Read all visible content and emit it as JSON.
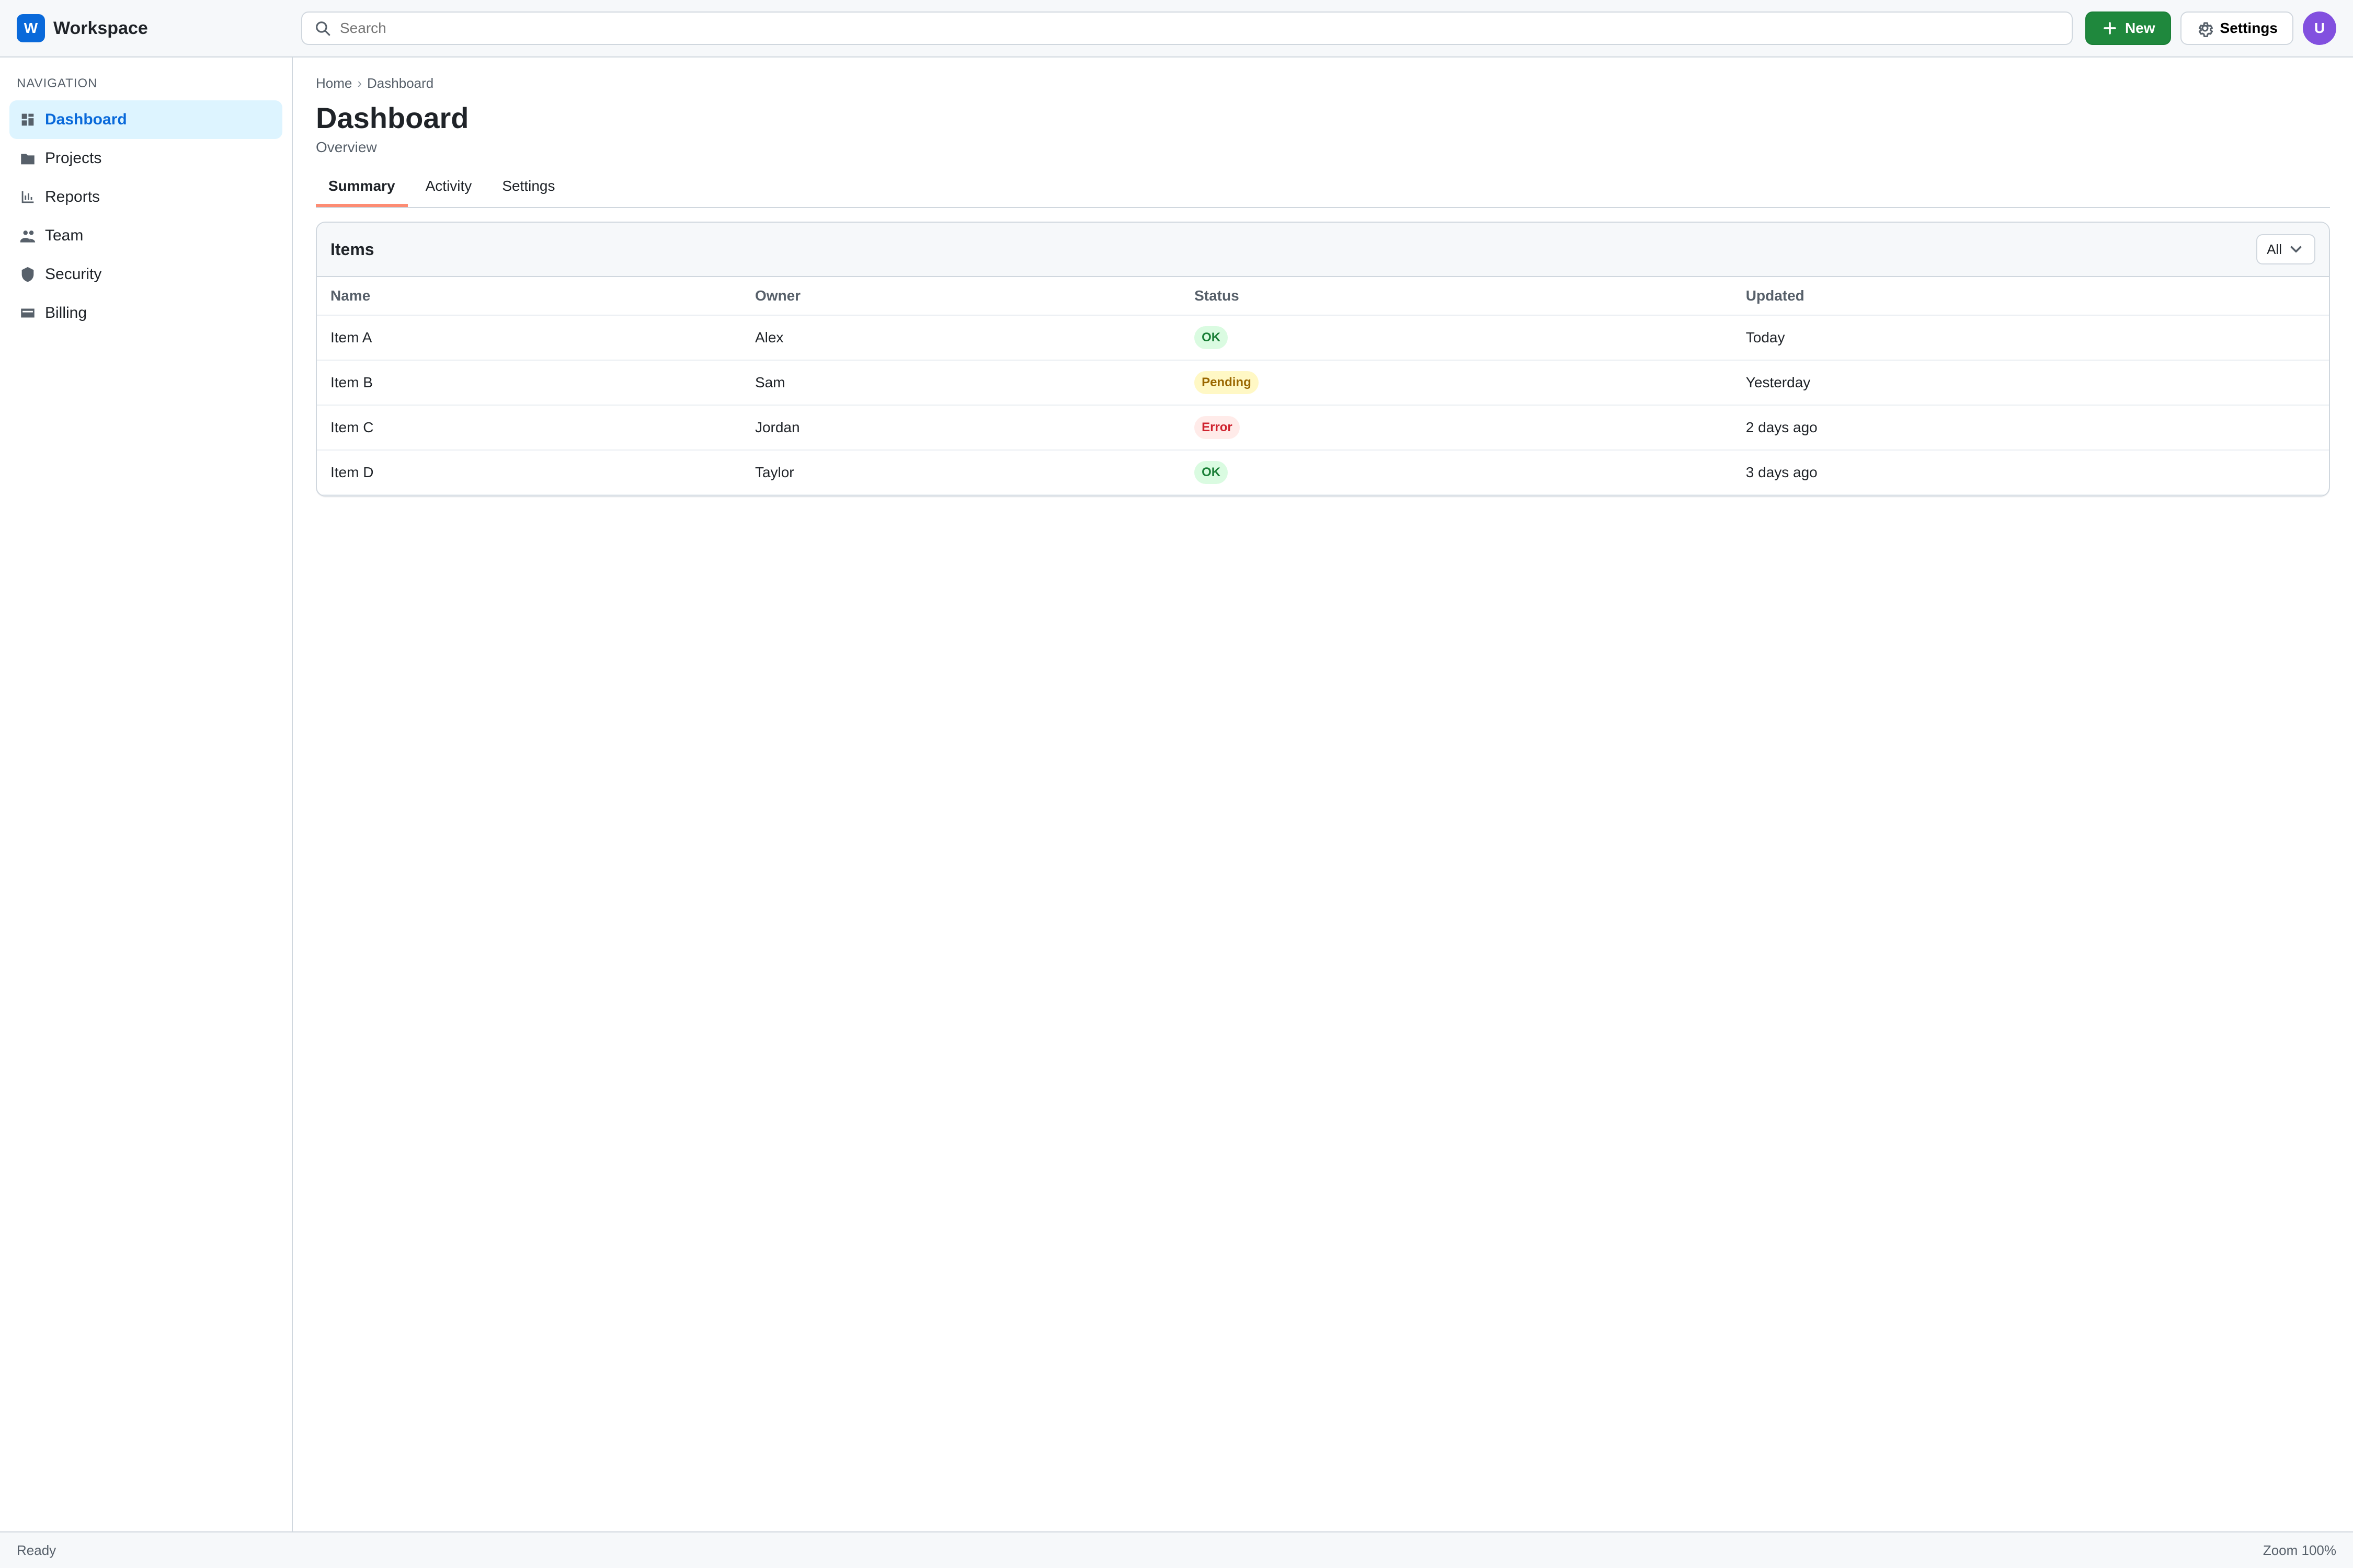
{
  "app": {
    "name": "Workspace",
    "initial": "W"
  },
  "topbar": {
    "search_placeholder": "Search",
    "new_label": "New",
    "settings_label": "Settings",
    "user_initials": "U"
  },
  "sidebar": {
    "section_title": "Navigation",
    "items": [
      {
        "label": "Dashboard"
      },
      {
        "label": "Projects"
      },
      {
        "label": "Reports"
      },
      {
        "label": "Team"
      },
      {
        "label": "Security"
      },
      {
        "label": "Billing"
      }
    ],
    "active_index": 0
  },
  "main": {
    "breadcrumb": [
      "Home",
      "Dashboard"
    ],
    "title": "Dashboard",
    "subtitle": "Overview",
    "tabs": [
      {
        "label": "Summary"
      },
      {
        "label": "Activity"
      },
      {
        "label": "Settings"
      }
    ],
    "active_tab": 0,
    "card_title": "Items",
    "filter_label": "All",
    "table": {
      "columns": [
        "Name",
        "Owner",
        "Status",
        "Updated"
      ],
      "rows": [
        [
          "Item A",
          "Alex",
          "OK",
          "Today"
        ],
        [
          "Item B",
          "Sam",
          "Pending",
          "Yesterday"
        ],
        [
          "Item C",
          "Jordan",
          "Error",
          "2 days ago"
        ],
        [
          "Item D",
          "Taylor",
          "OK",
          "3 days ago"
        ]
      ],
      "status_style_map": {
        "OK": "ok",
        "Pending": "warn",
        "Error": "err"
      }
    }
  },
  "status": {
    "left": "Ready",
    "right": "Zoom 100%"
  },
  "icons": {
    "search": "search-icon",
    "plus": "plus-icon",
    "gear": "gear-icon",
    "chevron": "chevron-down-icon"
  }
}
